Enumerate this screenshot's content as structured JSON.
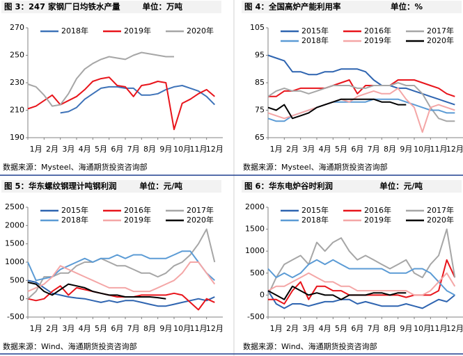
{
  "chart_data": [
    {
      "type": "line",
      "title": "图 3：247 家钢厂日均铁水产量",
      "unit": "单位：万吨",
      "source": "数据来源：Mysteel、海通期货投资咨询部",
      "x": [
        1,
        1.5,
        2,
        2.5,
        3,
        3.5,
        4,
        4.5,
        5,
        5.5,
        6,
        6.5,
        7,
        7.5,
        8,
        8.5,
        9,
        9.5,
        10,
        10.5,
        11,
        11.5,
        12,
        12.5
      ],
      "xlim": [
        1,
        13
      ],
      "xticks": [
        {
          "value": 1,
          "label": "1月"
        },
        {
          "value": 2,
          "label": "2月"
        },
        {
          "value": 3,
          "label": "3月"
        },
        {
          "value": 4,
          "label": "4月"
        },
        {
          "value": 5,
          "label": "5月"
        },
        {
          "value": 6,
          "label": "6月"
        },
        {
          "value": 7,
          "label": "7月"
        },
        {
          "value": 8,
          "label": "8月"
        },
        {
          "value": 9,
          "label": "9月"
        },
        {
          "value": 10,
          "label": "10月"
        },
        {
          "value": 11,
          "label": "11月"
        },
        {
          "value": 12,
          "label": "12月"
        }
      ],
      "ylim": [
        190,
        270
      ],
      "yticks": [
        190,
        210,
        230,
        250,
        270
      ],
      "grid": false,
      "legend": "top",
      "series": [
        {
          "name": "2018年",
          "color": "#3d72b8",
          "values": [
            null,
            null,
            null,
            null,
            208,
            209,
            212,
            218,
            222,
            226,
            227,
            227,
            226,
            226,
            221,
            221,
            222,
            225,
            227,
            228,
            226,
            224,
            220,
            214
          ]
        },
        {
          "name": "2019年",
          "color": "#e8141b",
          "values": [
            211,
            213,
            217,
            221,
            214,
            217,
            220,
            225,
            231,
            233,
            234,
            228,
            227,
            220,
            228,
            229,
            231,
            230,
            196,
            215,
            218,
            222,
            225,
            220
          ]
        },
        {
          "name": "2020年",
          "color": "#a6a6a6",
          "values": [
            229,
            227,
            221,
            213,
            214,
            222,
            233,
            240,
            244,
            247,
            249,
            248,
            247,
            250,
            252,
            251,
            250,
            249,
            249,
            null,
            null,
            null,
            null,
            null
          ]
        }
      ]
    },
    {
      "type": "line",
      "title": "图 4：全国高炉产能利用率",
      "unit": "单位：%",
      "source": "数据来源：Mysteel、海通期货投资咨询部",
      "x": [
        1,
        1.5,
        2,
        2.5,
        3,
        3.5,
        4,
        4.5,
        5,
        5.5,
        6,
        6.5,
        7,
        7.5,
        8,
        8.5,
        9,
        9.5,
        10,
        10.5,
        11,
        11.5,
        12,
        12.5
      ],
      "xlim": [
        1,
        13
      ],
      "xticks": [
        {
          "value": 1,
          "label": "1月"
        },
        {
          "value": 2,
          "label": "2月"
        },
        {
          "value": 3,
          "label": "3月"
        },
        {
          "value": 4,
          "label": "4月"
        },
        {
          "value": 5,
          "label": "5月"
        },
        {
          "value": 6,
          "label": "6月"
        },
        {
          "value": 7,
          "label": "7月"
        },
        {
          "value": 8,
          "label": "8月"
        },
        {
          "value": 9,
          "label": "9月"
        },
        {
          "value": 10,
          "label": "10月"
        },
        {
          "value": 11,
          "label": "11月"
        },
        {
          "value": 12,
          "label": "12月"
        }
      ],
      "ylim": [
        65,
        105
      ],
      "yticks": [
        65,
        75,
        85,
        95,
        105
      ],
      "grid": false,
      "legend": "top",
      "series": [
        {
          "name": "2015年",
          "color": "#2e64b0",
          "values": [
            95,
            94,
            93,
            89,
            89,
            88,
            88,
            89,
            89,
            90,
            90,
            90,
            89,
            86,
            84,
            84,
            83,
            83,
            82,
            81,
            80,
            79,
            78,
            77
          ]
        },
        {
          "name": "2016年",
          "color": "#e8141b",
          "values": [
            80,
            80,
            82,
            82,
            83,
            83,
            83,
            83,
            84,
            85,
            86,
            81,
            84,
            84,
            84,
            84,
            86,
            86,
            86,
            85,
            84,
            83,
            81,
            80
          ]
        },
        {
          "name": "2017年",
          "color": "#a6a6a6",
          "values": [
            80,
            82,
            83,
            82,
            82,
            81,
            82,
            83,
            84,
            84,
            84,
            83,
            83,
            84,
            84,
            84,
            85,
            84,
            84,
            81,
            76,
            72,
            71,
            71
          ]
        },
        {
          "name": "2018年",
          "color": "#5b9bd5",
          "values": [
            72,
            71,
            71,
            73,
            74,
            75,
            76,
            77,
            78,
            78,
            78,
            78,
            78,
            79,
            79,
            79,
            79,
            78,
            77,
            76,
            75,
            75,
            74,
            74
          ]
        },
        {
          "name": "2019年",
          "color": "#f4a6a6",
          "values": [
            74,
            73,
            72,
            73,
            74,
            75,
            76,
            77,
            78,
            79,
            78,
            80,
            81,
            82,
            81,
            81,
            83,
            79,
            76,
            67,
            76,
            77,
            76,
            75
          ]
        },
        {
          "name": "2020年",
          "color": "#000000",
          "values": [
            76,
            75,
            77,
            72,
            73,
            74,
            76,
            77,
            78,
            79,
            79,
            79,
            79,
            79,
            78,
            78,
            77,
            77,
            null,
            null,
            null,
            null,
            null,
            null
          ]
        }
      ]
    },
    {
      "type": "line",
      "title": "图 5：华东螺纹钢理计吨钢利润",
      "unit": "单位：元/吨",
      "source": "数据来源：Wind、海通期货投资咨询部",
      "x": [
        1,
        1.5,
        2,
        2.5,
        3,
        3.5,
        4,
        4.5,
        5,
        5.5,
        6,
        6.5,
        7,
        7.5,
        8,
        8.5,
        9,
        9.5,
        10,
        10.5,
        11,
        11.5,
        12,
        12.5
      ],
      "xlim": [
        1,
        13
      ],
      "xticks": [
        {
          "value": 1,
          "label": "1月"
        },
        {
          "value": 2,
          "label": "2月"
        },
        {
          "value": 3,
          "label": "3月"
        },
        {
          "value": 4,
          "label": "4月"
        },
        {
          "value": 5,
          "label": "5月"
        },
        {
          "value": 6,
          "label": "6月"
        },
        {
          "value": 7,
          "label": "7月"
        },
        {
          "value": 8,
          "label": "8月"
        },
        {
          "value": 9,
          "label": "9月"
        },
        {
          "value": 10,
          "label": "10月"
        },
        {
          "value": 11,
          "label": "11月"
        },
        {
          "value": 12,
          "label": "12月"
        }
      ],
      "ylim": [
        -500,
        2500
      ],
      "yticks": [
        -500,
        0,
        500,
        1000,
        1500,
        2000,
        2500
      ],
      "grid": false,
      "legend": "top",
      "series": [
        {
          "name": "2015年",
          "color": "#2e64b0",
          "values": [
            500,
            450,
            300,
            150,
            100,
            50,
            20,
            0,
            -50,
            -100,
            -50,
            -100,
            -50,
            -50,
            -100,
            -150,
            -200,
            -200,
            -150,
            -100,
            -50,
            0,
            -50,
            50
          ]
        },
        {
          "name": "2016年",
          "color": "#e8141b",
          "values": [
            0,
            -50,
            0,
            200,
            350,
            100,
            300,
            250,
            200,
            150,
            100,
            50,
            50,
            50,
            100,
            100,
            100,
            100,
            150,
            100,
            -100,
            -300,
            0,
            -100
          ]
        },
        {
          "name": "2017年",
          "color": "#a6a6a6",
          "values": [
            0,
            200,
            600,
            600,
            700,
            700,
            900,
            1000,
            1000,
            1100,
            1000,
            900,
            900,
            800,
            700,
            700,
            600,
            700,
            900,
            1000,
            1200,
            1500,
            1900,
            1000
          ]
        },
        {
          "name": "2018年",
          "color": "#5b9bd5",
          "values": [
            1000,
            500,
            550,
            600,
            800,
            900,
            1000,
            1100,
            1000,
            1100,
            1100,
            1200,
            1100,
            1200,
            1200,
            1100,
            1100,
            1100,
            1200,
            1300,
            1300,
            1000,
            700,
            500
          ]
        },
        {
          "name": "2019年",
          "color": "#f4a6a6",
          "values": [
            200,
            300,
            400,
            600,
            900,
            800,
            700,
            600,
            500,
            400,
            300,
            300,
            300,
            200,
            200,
            200,
            300,
            400,
            500,
            700,
            1000,
            1000,
            700,
            400
          ]
        },
        {
          "name": "2020年",
          "color": "#000000",
          "values": [
            450,
            400,
            200,
            100,
            250,
            400,
            350,
            300,
            200,
            150,
            100,
            100,
            50,
            50,
            50,
            50,
            30,
            0,
            null,
            null,
            null,
            null,
            null,
            null
          ]
        }
      ]
    },
    {
      "type": "line",
      "title": "图 6：华东电炉谷时利润",
      "unit": "单位：元/吨",
      "source": "数据来源：Wind、海通期货投资咨询部",
      "x": [
        1,
        1.5,
        2,
        2.5,
        3,
        3.5,
        4,
        4.5,
        5,
        5.5,
        6,
        6.5,
        7,
        7.5,
        8,
        8.5,
        9,
        9.5,
        10,
        10.5,
        11,
        11.5,
        12,
        12.5
      ],
      "xlim": [
        1,
        13
      ],
      "xticks": [
        {
          "value": 1,
          "label": "1月"
        },
        {
          "value": 2,
          "label": "2月"
        },
        {
          "value": 3,
          "label": "3月"
        },
        {
          "value": 4,
          "label": "4月"
        },
        {
          "value": 5,
          "label": "5月"
        },
        {
          "value": 6,
          "label": "6月"
        },
        {
          "value": 7,
          "label": "7月"
        },
        {
          "value": 8,
          "label": "8月"
        },
        {
          "value": 9,
          "label": "9月"
        },
        {
          "value": 10,
          "label": "10月"
        },
        {
          "value": 11,
          "label": "11月"
        },
        {
          "value": 12,
          "label": "12月"
        }
      ],
      "ylim": [
        -500,
        2000
      ],
      "yticks": [
        -500,
        0,
        500,
        1000,
        1500,
        2000
      ],
      "grid": false,
      "legend": "top",
      "series": [
        {
          "name": "2015年",
          "color": "#2e64b0",
          "values": [
            100,
            -200,
            -300,
            -200,
            -200,
            -250,
            -200,
            -150,
            -150,
            -100,
            -100,
            -200,
            -150,
            -200,
            -250,
            -250,
            -250,
            -200,
            -250,
            -300,
            -200,
            -100,
            -150,
            0
          ]
        },
        {
          "name": "2016年",
          "color": "#e8141b",
          "values": [
            -100,
            -100,
            -200,
            100,
            300,
            -100,
            200,
            200,
            100,
            100,
            0,
            0,
            0,
            0,
            0,
            0,
            0,
            -50,
            0,
            0,
            0,
            100,
            800,
            400
          ]
        },
        {
          "name": "2017年",
          "color": "#a6a6a6",
          "values": [
            0,
            400,
            700,
            800,
            900,
            700,
            1200,
            1000,
            1200,
            1300,
            1000,
            800,
            900,
            800,
            700,
            600,
            700,
            800,
            500,
            400,
            700,
            900,
            1500,
            400
          ]
        },
        {
          "name": "2018年",
          "color": "#5b9bd5",
          "values": [
            600,
            400,
            500,
            400,
            500,
            700,
            800,
            700,
            800,
            700,
            600,
            600,
            600,
            600,
            600,
            500,
            500,
            500,
            600,
            600,
            500,
            300,
            100,
            0
          ]
        },
        {
          "name": "2019年",
          "color": "#f4a6a6",
          "values": [
            100,
            200,
            200,
            300,
            400,
            500,
            400,
            300,
            300,
            200,
            200,
            100,
            100,
            100,
            100,
            100,
            100,
            100,
            0,
            0,
            100,
            300,
            500,
            200
          ]
        },
        {
          "name": "2020年",
          "color": "#000000",
          "values": [
            100,
            0,
            -100,
            200,
            100,
            0,
            50,
            0,
            0,
            -100,
            0,
            0,
            0,
            50,
            50,
            0,
            50,
            50,
            null,
            null,
            null,
            null,
            null,
            null
          ]
        }
      ]
    }
  ]
}
